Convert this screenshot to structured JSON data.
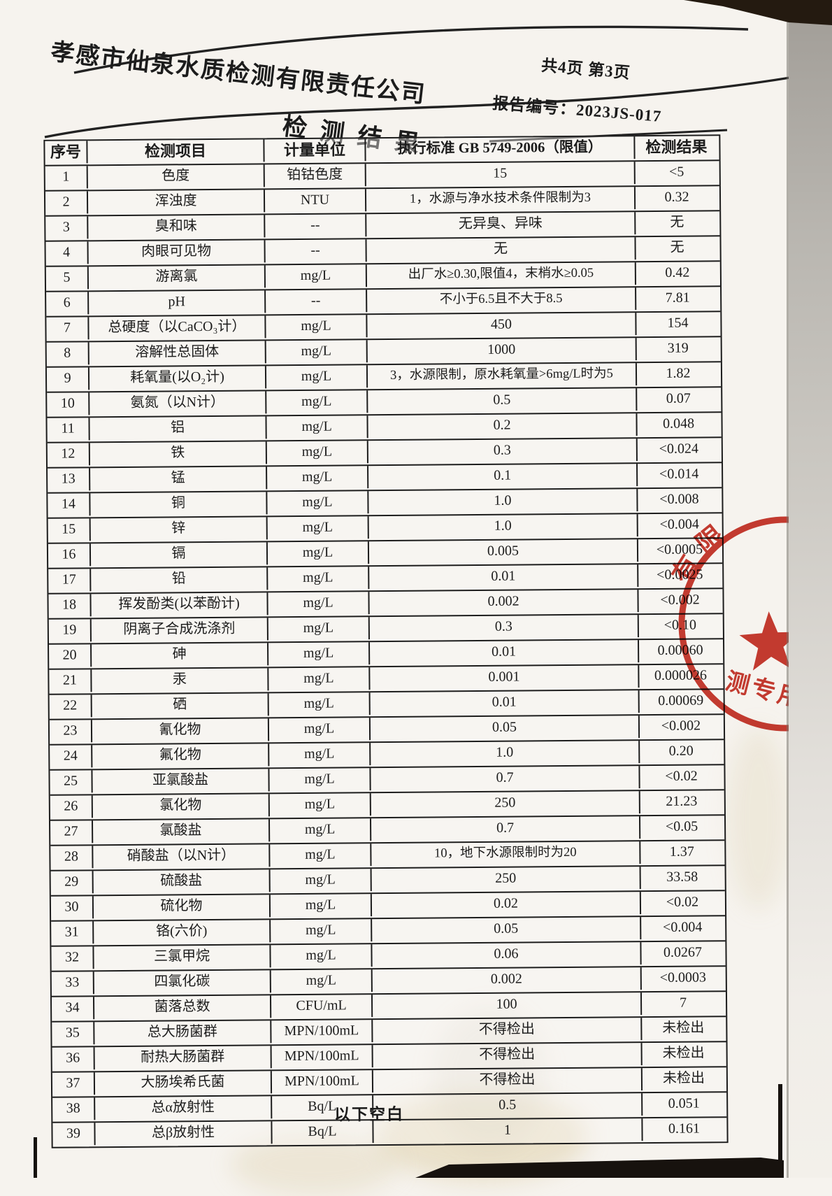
{
  "letterhead": {
    "company": "孝感市仙泉水质检测有限责任公司",
    "page_info": "共4页 第3页",
    "report_label": "报告编号：2023JS-017"
  },
  "title": "检测结果",
  "table": {
    "headers": {
      "no": "序号",
      "item": "检测项目",
      "unit": "计量单位",
      "limit": "执行标准 GB 5749-2006（限值）",
      "result": "检测结果"
    },
    "rows": [
      {
        "no": "1",
        "item": "色度",
        "unit": "铂钴色度",
        "limit": "15",
        "result": "<5"
      },
      {
        "no": "2",
        "item": "浑浊度",
        "unit": "NTU",
        "limit": "1，水源与净水技术条件限制为3",
        "result": "0.32"
      },
      {
        "no": "3",
        "item": "臭和味",
        "unit": "--",
        "limit": "无异臭、异味",
        "result": "无"
      },
      {
        "no": "4",
        "item": "肉眼可见物",
        "unit": "--",
        "limit": "无",
        "result": "无"
      },
      {
        "no": "5",
        "item": "游离氯",
        "unit": "mg/L",
        "limit": "出厂水≥0.30,限值4，末梢水≥0.05",
        "result": "0.42"
      },
      {
        "no": "6",
        "item": "pH",
        "unit": "--",
        "limit": "不小于6.5且不大于8.5",
        "result": "7.81"
      },
      {
        "no": "7",
        "item": "总硬度（以CaCO₃计）",
        "unit": "mg/L",
        "limit": "450",
        "result": "154"
      },
      {
        "no": "8",
        "item": "溶解性总固体",
        "unit": "mg/L",
        "limit": "1000",
        "result": "319"
      },
      {
        "no": "9",
        "item": "耗氧量(以O₂计)",
        "unit": "mg/L",
        "limit": "3，水源限制，原水耗氧量>6mg/L时为5",
        "result": "1.82"
      },
      {
        "no": "10",
        "item": "氨氮（以N计）",
        "unit": "mg/L",
        "limit": "0.5",
        "result": "0.07"
      },
      {
        "no": "11",
        "item": "铝",
        "unit": "mg/L",
        "limit": "0.2",
        "result": "0.048"
      },
      {
        "no": "12",
        "item": "铁",
        "unit": "mg/L",
        "limit": "0.3",
        "result": "<0.024"
      },
      {
        "no": "13",
        "item": "锰",
        "unit": "mg/L",
        "limit": "0.1",
        "result": "<0.014"
      },
      {
        "no": "14",
        "item": "铜",
        "unit": "mg/L",
        "limit": "1.0",
        "result": "<0.008"
      },
      {
        "no": "15",
        "item": "锌",
        "unit": "mg/L",
        "limit": "1.0",
        "result": "<0.004"
      },
      {
        "no": "16",
        "item": "镉",
        "unit": "mg/L",
        "limit": "0.005",
        "result": "<0.0005"
      },
      {
        "no": "17",
        "item": "铅",
        "unit": "mg/L",
        "limit": "0.01",
        "result": "<0.0025"
      },
      {
        "no": "18",
        "item": "挥发酚类(以苯酚计)",
        "unit": "mg/L",
        "limit": "0.002",
        "result": "<0.002"
      },
      {
        "no": "19",
        "item": "阴离子合成洗涤剂",
        "unit": "mg/L",
        "limit": "0.3",
        "result": "<0.10"
      },
      {
        "no": "20",
        "item": "砷",
        "unit": "mg/L",
        "limit": "0.01",
        "result": "0.00060"
      },
      {
        "no": "21",
        "item": "汞",
        "unit": "mg/L",
        "limit": "0.001",
        "result": "0.000026"
      },
      {
        "no": "22",
        "item": "硒",
        "unit": "mg/L",
        "limit": "0.01",
        "result": "0.00069"
      },
      {
        "no": "23",
        "item": "氰化物",
        "unit": "mg/L",
        "limit": "0.05",
        "result": "<0.002"
      },
      {
        "no": "24",
        "item": "氟化物",
        "unit": "mg/L",
        "limit": "1.0",
        "result": "0.20"
      },
      {
        "no": "25",
        "item": "亚氯酸盐",
        "unit": "mg/L",
        "limit": "0.7",
        "result": "<0.02"
      },
      {
        "no": "26",
        "item": "氯化物",
        "unit": "mg/L",
        "limit": "250",
        "result": "21.23"
      },
      {
        "no": "27",
        "item": "氯酸盐",
        "unit": "mg/L",
        "limit": "0.7",
        "result": "<0.05"
      },
      {
        "no": "28",
        "item": "硝酸盐（以N计）",
        "unit": "mg/L",
        "limit": "10，地下水源限制时为20",
        "result": "1.37"
      },
      {
        "no": "29",
        "item": "硫酸盐",
        "unit": "mg/L",
        "limit": "250",
        "result": "33.58"
      },
      {
        "no": "30",
        "item": "硫化物",
        "unit": "mg/L",
        "limit": "0.02",
        "result": "<0.02"
      },
      {
        "no": "31",
        "item": "铬(六价)",
        "unit": "mg/L",
        "limit": "0.05",
        "result": "<0.004"
      },
      {
        "no": "32",
        "item": "三氯甲烷",
        "unit": "mg/L",
        "limit": "0.06",
        "result": "0.0267"
      },
      {
        "no": "33",
        "item": "四氯化碳",
        "unit": "mg/L",
        "limit": "0.002",
        "result": "<0.0003"
      },
      {
        "no": "34",
        "item": "菌落总数",
        "unit": "CFU/mL",
        "limit": "100",
        "result": "7"
      },
      {
        "no": "35",
        "item": "总大肠菌群",
        "unit": "MPN/100mL",
        "limit": "不得检出",
        "result": "未检出"
      },
      {
        "no": "36",
        "item": "耐热大肠菌群",
        "unit": "MPN/100mL",
        "limit": "不得检出",
        "result": "未检出"
      },
      {
        "no": "37",
        "item": "大肠埃希氏菌",
        "unit": "MPN/100mL",
        "limit": "不得检出",
        "result": "未检出"
      },
      {
        "no": "38",
        "item": "总α放射性",
        "unit": "Bq/L",
        "limit": "0.5",
        "result": "0.051"
      },
      {
        "no": "39",
        "item": "总β放射性",
        "unit": "Bq/L",
        "limit": "1",
        "result": "0.161"
      }
    ]
  },
  "footer": {
    "note": "以下空白"
  },
  "stamp": {
    "ring_text": "有限",
    "center_text": "测专用章",
    "color": "#c3271b"
  },
  "colors": {
    "paper": "#f6f3ee",
    "ink": "#1c1c1c"
  }
}
